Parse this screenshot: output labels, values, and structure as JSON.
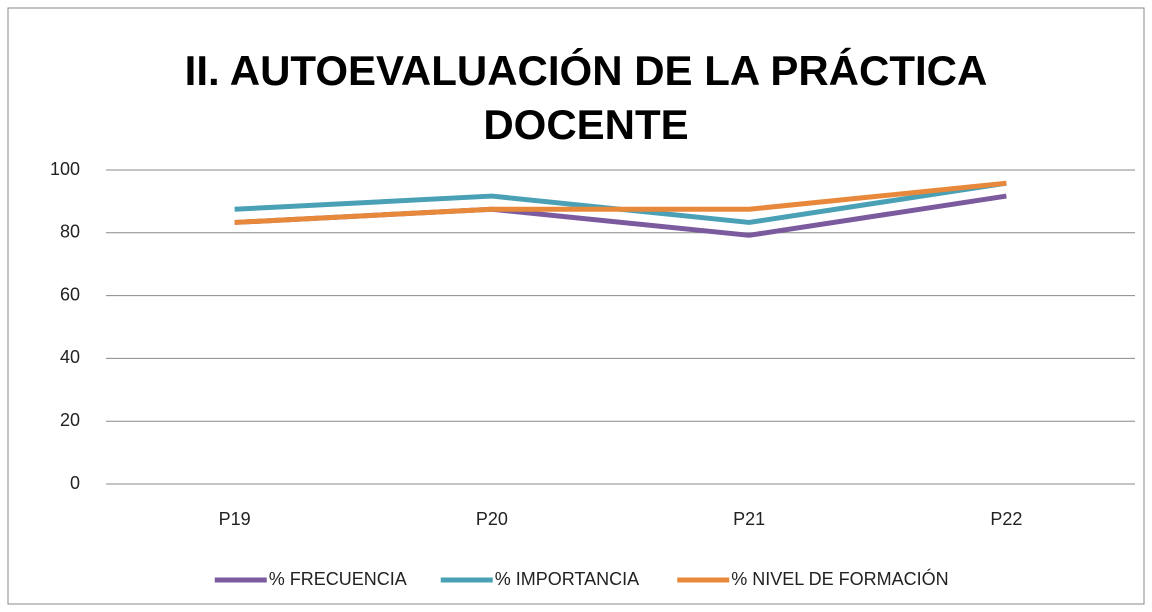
{
  "chart_data": {
    "type": "line",
    "title": [
      "II. AUTOEVALUACIÓN DE LA PRÁCTICA",
      "DOCENTE"
    ],
    "categories": [
      "P19",
      "P20",
      "P21",
      "P22"
    ],
    "series": [
      {
        "name": "% FRECUENCIA",
        "color": "#7b5a9e",
        "values": [
          83.3,
          87.5,
          79.2,
          91.7
        ]
      },
      {
        "name": "% IMPORTANCIA",
        "color": "#4aa0b5",
        "values": [
          87.5,
          91.7,
          83.3,
          95.8
        ]
      },
      {
        "name": "% NIVEL DE FORMACIÓN",
        "color": "#e8883a",
        "values": [
          83.3,
          87.5,
          87.5,
          95.8
        ]
      }
    ],
    "ylim": [
      0,
      100
    ],
    "yticks": [
      0,
      20,
      40,
      60,
      80,
      100
    ],
    "grid": true,
    "legend": "bottom"
  }
}
